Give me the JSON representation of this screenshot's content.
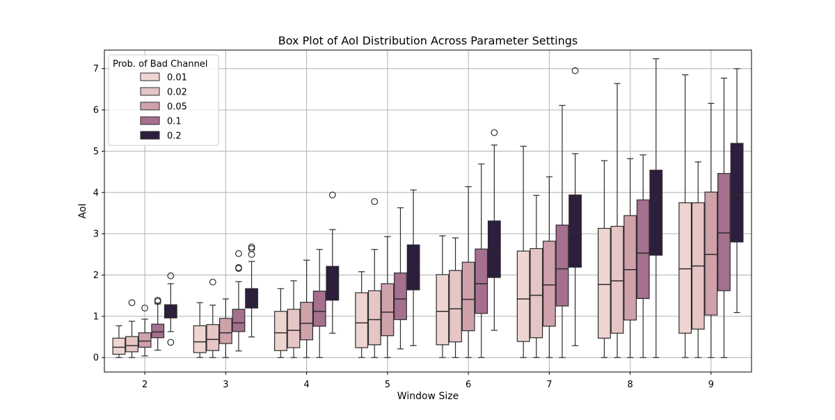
{
  "chart_data": {
    "type": "box",
    "title": "Box Plot of AoI Distribution Across Parameter Settings",
    "xlabel": "Window Size",
    "ylabel": "AoI",
    "ylim": [
      -0.35,
      7.45
    ],
    "yticks": [
      0,
      1,
      2,
      3,
      4,
      5,
      6,
      7
    ],
    "categories": [
      "2",
      "3",
      "4",
      "5",
      "6",
      "7",
      "8",
      "9"
    ],
    "grid": true,
    "legend": {
      "title": "Prob. of Bad Channel",
      "placement": "top-left"
    },
    "series": [
      {
        "name": "0.01",
        "color": "#efd5d2",
        "boxes": [
          {
            "whisker_low": 0.0,
            "q1": 0.08,
            "median": 0.25,
            "q3": 0.47,
            "whisker_high": 0.77,
            "outliers": []
          },
          {
            "whisker_low": 0.0,
            "q1": 0.12,
            "median": 0.38,
            "q3": 0.77,
            "whisker_high": 1.33,
            "outliers": []
          },
          {
            "whisker_low": 0.0,
            "q1": 0.17,
            "median": 0.6,
            "q3": 1.12,
            "whisker_high": 1.67,
            "outliers": []
          },
          {
            "whisker_low": 0.0,
            "q1": 0.24,
            "median": 0.84,
            "q3": 1.57,
            "whisker_high": 2.08,
            "outliers": []
          },
          {
            "whisker_low": 0.0,
            "q1": 0.31,
            "median": 1.12,
            "q3": 2.01,
            "whisker_high": 2.95,
            "outliers": []
          },
          {
            "whisker_low": 0.0,
            "q1": 0.39,
            "median": 1.42,
            "q3": 2.58,
            "whisker_high": 5.12,
            "outliers": []
          },
          {
            "whisker_low": 0.0,
            "q1": 0.47,
            "median": 1.77,
            "q3": 3.13,
            "whisker_high": 4.77,
            "outliers": []
          },
          {
            "whisker_low": 0.0,
            "q1": 0.59,
            "median": 2.15,
            "q3": 3.75,
            "whisker_high": 6.85,
            "outliers": []
          }
        ]
      },
      {
        "name": "0.02",
        "color": "#e6c5c5",
        "boxes": [
          {
            "whisker_low": 0.0,
            "q1": 0.14,
            "median": 0.29,
            "q3": 0.51,
            "whisker_high": 0.88,
            "outliers": [
              1.33
            ]
          },
          {
            "whisker_low": 0.0,
            "q1": 0.17,
            "median": 0.44,
            "q3": 0.8,
            "whisker_high": 1.27,
            "outliers": [
              1.83
            ]
          },
          {
            "whisker_low": 0.0,
            "q1": 0.24,
            "median": 0.66,
            "q3": 1.17,
            "whisker_high": 1.86,
            "outliers": []
          },
          {
            "whisker_low": 0.0,
            "q1": 0.31,
            "median": 0.92,
            "q3": 1.62,
            "whisker_high": 2.62,
            "outliers": [
              3.78
            ]
          },
          {
            "whisker_low": 0.0,
            "q1": 0.38,
            "median": 1.18,
            "q3": 2.11,
            "whisker_high": 2.9,
            "outliers": []
          },
          {
            "whisker_low": 0.0,
            "q1": 0.48,
            "median": 1.51,
            "q3": 2.64,
            "whisker_high": 3.93,
            "outliers": []
          },
          {
            "whisker_low": 0.0,
            "q1": 0.59,
            "median": 1.86,
            "q3": 3.18,
            "whisker_high": 6.64,
            "outliers": []
          },
          {
            "whisker_low": 0.0,
            "q1": 0.69,
            "median": 2.22,
            "q3": 3.75,
            "whisker_high": 4.74,
            "outliers": []
          }
        ]
      },
      {
        "name": "0.05",
        "color": "#cfa1ab",
        "boxes": [
          {
            "whisker_low": 0.04,
            "q1": 0.25,
            "median": 0.4,
            "q3": 0.6,
            "whisker_high": 0.93,
            "outliers": [
              1.2
            ]
          },
          {
            "whisker_low": 0.0,
            "q1": 0.34,
            "median": 0.6,
            "q3": 0.95,
            "whisker_high": 1.42,
            "outliers": []
          },
          {
            "whisker_low": 0.0,
            "q1": 0.43,
            "median": 0.83,
            "q3": 1.34,
            "whisker_high": 2.36,
            "outliers": []
          },
          {
            "whisker_low": 0.0,
            "q1": 0.53,
            "median": 1.1,
            "q3": 1.79,
            "whisker_high": 2.93,
            "outliers": []
          },
          {
            "whisker_low": 0.0,
            "q1": 0.65,
            "median": 1.41,
            "q3": 2.31,
            "whisker_high": 4.14,
            "outliers": []
          },
          {
            "whisker_low": 0.0,
            "q1": 0.76,
            "median": 1.76,
            "q3": 2.82,
            "whisker_high": 4.38,
            "outliers": []
          },
          {
            "whisker_low": 0.0,
            "q1": 0.91,
            "median": 2.13,
            "q3": 3.44,
            "whisker_high": 4.82,
            "outliers": []
          },
          {
            "whisker_low": 0.0,
            "q1": 1.03,
            "median": 2.5,
            "q3": 4.01,
            "whisker_high": 6.16,
            "outliers": []
          }
        ]
      },
      {
        "name": "0.1",
        "color": "#a56f8f",
        "boxes": [
          {
            "whisker_low": 0.18,
            "q1": 0.48,
            "median": 0.62,
            "q3": 0.81,
            "whisker_high": 1.3,
            "outliers": [
              1.36,
              1.39
            ]
          },
          {
            "whisker_low": 0.16,
            "q1": 0.63,
            "median": 0.84,
            "q3": 1.17,
            "whisker_high": 1.84,
            "outliers": [
              2.16,
              2.18,
              2.52
            ]
          },
          {
            "whisker_low": 0.0,
            "q1": 0.76,
            "median": 1.12,
            "q3": 1.61,
            "whisker_high": 2.62,
            "outliers": []
          },
          {
            "whisker_low": 0.21,
            "q1": 0.92,
            "median": 1.42,
            "q3": 2.05,
            "whisker_high": 3.63,
            "outliers": []
          },
          {
            "whisker_low": 0.0,
            "q1": 1.07,
            "median": 1.79,
            "q3": 2.63,
            "whisker_high": 4.69,
            "outliers": []
          },
          {
            "whisker_low": 0.0,
            "q1": 1.25,
            "median": 2.15,
            "q3": 3.21,
            "whisker_high": 6.11,
            "outliers": []
          },
          {
            "whisker_low": 0.0,
            "q1": 1.43,
            "median": 2.53,
            "q3": 3.82,
            "whisker_high": 4.91,
            "outliers": []
          },
          {
            "whisker_low": 0.0,
            "q1": 1.62,
            "median": 3.02,
            "q3": 4.46,
            "whisker_high": 6.77,
            "outliers": []
          }
        ]
      },
      {
        "name": "0.2",
        "color": "#2d1e3e",
        "boxes": [
          {
            "whisker_low": 0.63,
            "q1": 0.96,
            "median": 1.1,
            "q3": 1.28,
            "whisker_high": 1.79,
            "outliers": [
              0.37,
              1.98
            ]
          },
          {
            "whisker_low": 0.5,
            "q1": 1.2,
            "median": 1.38,
            "q3": 1.67,
            "whisker_high": 2.33,
            "outliers": [
              2.5,
              2.64,
              2.68
            ]
          },
          {
            "whisker_low": 0.59,
            "q1": 1.39,
            "median": 1.75,
            "q3": 2.21,
            "whisker_high": 3.1,
            "outliers": [
              3.94
            ]
          },
          {
            "whisker_low": 0.29,
            "q1": 1.64,
            "median": 2.15,
            "q3": 2.73,
            "whisker_high": 4.06,
            "outliers": []
          },
          {
            "whisker_low": 0.66,
            "q1": 1.94,
            "median": 2.6,
            "q3": 3.31,
            "whisker_high": 5.15,
            "outliers": [
              5.45
            ]
          },
          {
            "whisker_low": 0.29,
            "q1": 2.19,
            "median": 3.02,
            "q3": 3.94,
            "whisker_high": 4.94,
            "outliers": [
              6.95
            ]
          },
          {
            "whisker_low": 0.0,
            "q1": 2.48,
            "median": 3.45,
            "q3": 4.54,
            "whisker_high": 7.24,
            "outliers": []
          },
          {
            "whisker_low": 1.09,
            "q1": 2.8,
            "median": 3.94,
            "q3": 5.19,
            "whisker_high": 7.0,
            "outliers": []
          }
        ]
      }
    ]
  }
}
